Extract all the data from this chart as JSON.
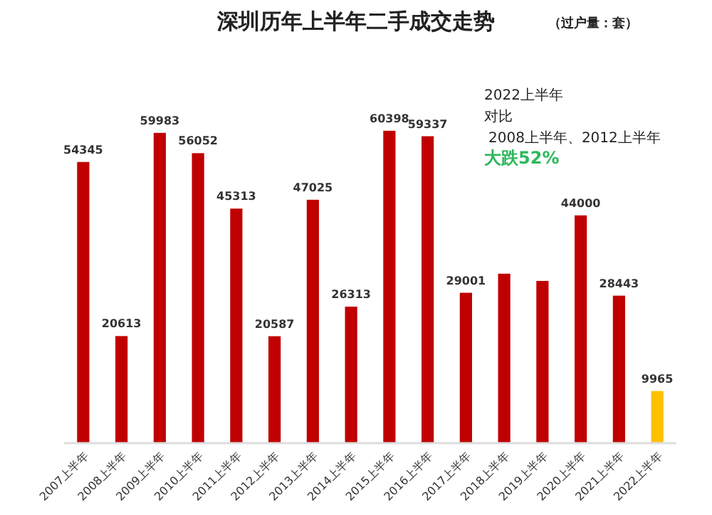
{
  "chart_data": {
    "type": "bar",
    "title": "深圳历年上半年二手成交走势",
    "subtitle": "（过户量：套）",
    "categories": [
      "2007上半年",
      "2008上半年",
      "2009上半年",
      "2010上半年",
      "2011上半年",
      "2012上半年",
      "2013上半年",
      "2014上半年",
      "2015上半年",
      "2016上半年",
      "2017上半年",
      "2018上半年",
      "2019上半年",
      "2020上半年",
      "2021上半年",
      "2022上半年"
    ],
    "values": [
      54345,
      20613,
      59983,
      56052,
      45313,
      20587,
      47025,
      26313,
      60398,
      59337,
      29001,
      32700,
      31300,
      44000,
      28443,
      9965
    ],
    "value_labels": [
      "54345",
      "20613",
      "59983",
      "56052",
      "45313",
      "20587",
      "47025",
      "26313",
      "60398",
      "59337",
      "29001",
      null,
      null,
      "44000",
      "28443",
      "9965"
    ],
    "colors": [
      "#c00000",
      "#c00000",
      "#c00000",
      "#c00000",
      "#c00000",
      "#c00000",
      "#c00000",
      "#c00000",
      "#c00000",
      "#c00000",
      "#c00000",
      "#c00000",
      "#c00000",
      "#c00000",
      "#c00000",
      "#ffc000"
    ],
    "annotations": [
      "2022上半年",
      "对比",
      "2008上半年、2012上半年",
      "大跌52%"
    ]
  }
}
